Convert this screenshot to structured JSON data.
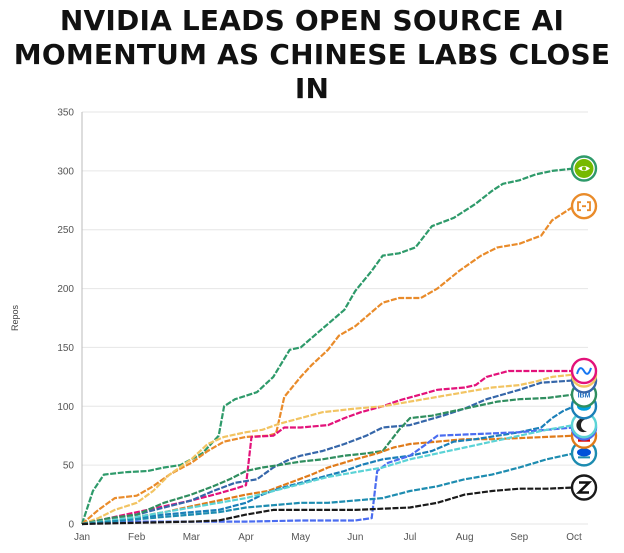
{
  "headline": {
    "line1": "NVIDIA LEADS OPEN SOURCE AI",
    "line2": "MOMENTUM AS CHINESE LABS CLOSE IN"
  },
  "chart_data": {
    "type": "line",
    "title": "NVIDIA LEADS OPEN SOURCE AI MOMENTUM AS CHINESE LABS CLOSE IN",
    "xlabel": "",
    "ylabel": "Repos",
    "ylim": [
      0,
      350
    ],
    "yticks": [
      0,
      50,
      100,
      150,
      200,
      250,
      300,
      350
    ],
    "xlim": [
      0,
      9
    ],
    "xticks": [
      {
        "label": "Jan",
        "x": 0
      },
      {
        "label": "Feb",
        "x": 1
      },
      {
        "label": "Mar",
        "x": 2
      },
      {
        "label": "Apr",
        "x": 3
      },
      {
        "label": "May",
        "x": 4
      },
      {
        "label": "Jun",
        "x": 5
      },
      {
        "label": "Jul",
        "x": 6
      },
      {
        "label": "Aug",
        "x": 7
      },
      {
        "label": "Sep",
        "x": 8
      },
      {
        "label": "Oct",
        "x": 9
      }
    ],
    "grid": true,
    "series": [
      {
        "name": "NVIDIA",
        "color": "#2e9a6a",
        "badge": "nvidia",
        "points": [
          [
            0,
            0
          ],
          [
            0.2,
            28
          ],
          [
            0.4,
            42
          ],
          [
            0.8,
            44
          ],
          [
            1.2,
            45
          ],
          [
            1.5,
            48
          ],
          [
            1.8,
            50
          ],
          [
            2.2,
            60
          ],
          [
            2.5,
            75
          ],
          [
            2.6,
            100
          ],
          [
            2.8,
            106
          ],
          [
            3.2,
            112
          ],
          [
            3.5,
            125
          ],
          [
            3.8,
            148
          ],
          [
            4,
            150
          ],
          [
            4.2,
            158
          ],
          [
            4.5,
            170
          ],
          [
            4.8,
            182
          ],
          [
            5,
            198
          ],
          [
            5.3,
            215
          ],
          [
            5.5,
            228
          ],
          [
            5.8,
            230
          ],
          [
            6.1,
            235
          ],
          [
            6.4,
            253
          ],
          [
            6.8,
            260
          ],
          [
            7.2,
            272
          ],
          [
            7.5,
            283
          ],
          [
            7.7,
            289
          ],
          [
            8,
            292
          ],
          [
            8.3,
            297
          ],
          [
            8.6,
            300
          ],
          [
            9,
            302
          ]
        ]
      },
      {
        "name": "Alibaba",
        "color": "#e98b2a",
        "badge": "alibaba",
        "points": [
          [
            0,
            0
          ],
          [
            0.3,
            12
          ],
          [
            0.6,
            22
          ],
          [
            1,
            24
          ],
          [
            1.3,
            32
          ],
          [
            1.6,
            42
          ],
          [
            2,
            52
          ],
          [
            2.3,
            62
          ],
          [
            2.6,
            70
          ],
          [
            3,
            74
          ],
          [
            3.4,
            75
          ],
          [
            3.55,
            77
          ],
          [
            3.7,
            108
          ],
          [
            4,
            125
          ],
          [
            4.2,
            135
          ],
          [
            4.5,
            148
          ],
          [
            4.7,
            160
          ],
          [
            5,
            168
          ],
          [
            5.3,
            180
          ],
          [
            5.5,
            188
          ],
          [
            5.8,
            192
          ],
          [
            6.2,
            192
          ],
          [
            6.5,
            200
          ],
          [
            6.9,
            215
          ],
          [
            7.3,
            228
          ],
          [
            7.6,
            235
          ],
          [
            8,
            238
          ],
          [
            8.4,
            245
          ],
          [
            8.6,
            258
          ],
          [
            9,
            270
          ]
        ]
      },
      {
        "name": "Meta",
        "color": "#e3127a",
        "badge": "meta",
        "points": [
          [
            0,
            0
          ],
          [
            0.5,
            5
          ],
          [
            1,
            10
          ],
          [
            1.5,
            15
          ],
          [
            2,
            20
          ],
          [
            2.5,
            26
          ],
          [
            2.8,
            30
          ],
          [
            3,
            33
          ],
          [
            3.1,
            74
          ],
          [
            3.5,
            75
          ],
          [
            3.7,
            82
          ],
          [
            4,
            82
          ],
          [
            4.5,
            84
          ],
          [
            4.8,
            90
          ],
          [
            5.1,
            95
          ],
          [
            5.5,
            100
          ],
          [
            5.8,
            105
          ],
          [
            6.2,
            110
          ],
          [
            6.5,
            114
          ],
          [
            7,
            116
          ],
          [
            7.2,
            118
          ],
          [
            7.4,
            125
          ],
          [
            7.8,
            130
          ],
          [
            9,
            130
          ]
        ]
      },
      {
        "name": "Google",
        "color": "#f2c462",
        "badge": "google",
        "points": [
          [
            0,
            0
          ],
          [
            0.3,
            5
          ],
          [
            0.6,
            12
          ],
          [
            1,
            18
          ],
          [
            1.3,
            28
          ],
          [
            1.6,
            42
          ],
          [
            2,
            55
          ],
          [
            2.3,
            68
          ],
          [
            2.6,
            74
          ],
          [
            3,
            78
          ],
          [
            3.3,
            80
          ],
          [
            3.6,
            85
          ],
          [
            4,
            90
          ],
          [
            4.4,
            95
          ],
          [
            5,
            98
          ],
          [
            5.5,
            100
          ],
          [
            6,
            104
          ],
          [
            6.5,
            108
          ],
          [
            7,
            112
          ],
          [
            7.5,
            116
          ],
          [
            8,
            118
          ],
          [
            8.3,
            121
          ],
          [
            8.6,
            125
          ],
          [
            9,
            127
          ]
        ]
      },
      {
        "name": "Microsoft",
        "color": "#3566a9",
        "badge": "microsoft",
        "points": [
          [
            0,
            0
          ],
          [
            0.5,
            4
          ],
          [
            1,
            8
          ],
          [
            1.5,
            14
          ],
          [
            2,
            20
          ],
          [
            2.4,
            28
          ],
          [
            2.8,
            35
          ],
          [
            3.2,
            38
          ],
          [
            3.5,
            48
          ],
          [
            3.8,
            55
          ],
          [
            4,
            58
          ],
          [
            4.4,
            62
          ],
          [
            4.8,
            68
          ],
          [
            5.2,
            75
          ],
          [
            5.5,
            82
          ],
          [
            6,
            84
          ],
          [
            6.3,
            88
          ],
          [
            6.6,
            92
          ],
          [
            7,
            98
          ],
          [
            7.4,
            106
          ],
          [
            7.7,
            110
          ],
          [
            8,
            114
          ],
          [
            8.4,
            120
          ],
          [
            9,
            122
          ]
        ]
      },
      {
        "name": "IBM",
        "color": "#2f8e5f",
        "badge": "ibm",
        "points": [
          [
            0,
            0
          ],
          [
            0.5,
            5
          ],
          [
            1,
            8
          ],
          [
            1.5,
            18
          ],
          [
            2,
            25
          ],
          [
            2.4,
            32
          ],
          [
            2.7,
            38
          ],
          [
            3,
            45
          ],
          [
            3.3,
            48
          ],
          [
            3.6,
            50
          ],
          [
            4,
            53
          ],
          [
            4.4,
            55
          ],
          [
            4.8,
            58
          ],
          [
            5.2,
            60
          ],
          [
            5.5,
            62
          ],
          [
            5.8,
            80
          ],
          [
            6,
            90
          ],
          [
            6.4,
            92
          ],
          [
            6.8,
            96
          ],
          [
            7.2,
            100
          ],
          [
            7.6,
            104
          ],
          [
            8,
            106
          ],
          [
            8.5,
            107
          ],
          [
            9,
            110
          ]
        ]
      },
      {
        "name": "Mistral",
        "color": "#e07b1a",
        "badge": "mistral",
        "points": [
          [
            0,
            0
          ],
          [
            0.5,
            3
          ],
          [
            1,
            6
          ],
          [
            1.5,
            10
          ],
          [
            2,
            15
          ],
          [
            2.5,
            20
          ],
          [
            3,
            25
          ],
          [
            3.4,
            28
          ],
          [
            3.8,
            35
          ],
          [
            4.2,
            42
          ],
          [
            4.5,
            48
          ],
          [
            5,
            55
          ],
          [
            5.4,
            60
          ],
          [
            5.7,
            65
          ],
          [
            6,
            68
          ],
          [
            6.5,
            70
          ],
          [
            7,
            72
          ],
          [
            7.5,
            72
          ],
          [
            8,
            73
          ],
          [
            8.5,
            74
          ],
          [
            9,
            75
          ]
        ]
      },
      {
        "name": "Salesforce",
        "color": "#1a7fb8",
        "badge": "salesforce",
        "points": [
          [
            0,
            0
          ],
          [
            0.5,
            2
          ],
          [
            1,
            5
          ],
          [
            1.5,
            8
          ],
          [
            2,
            10
          ],
          [
            2.5,
            12
          ],
          [
            3,
            18
          ],
          [
            3.3,
            25
          ],
          [
            3.6,
            30
          ],
          [
            4,
            35
          ],
          [
            4.4,
            40
          ],
          [
            4.8,
            45
          ],
          [
            5.1,
            50
          ],
          [
            5.5,
            55
          ],
          [
            6,
            58
          ],
          [
            6.4,
            62
          ],
          [
            6.8,
            70
          ],
          [
            7.2,
            72
          ],
          [
            7.6,
            75
          ],
          [
            8,
            78
          ],
          [
            8.4,
            82
          ],
          [
            8.6,
            90
          ],
          [
            8.8,
            96
          ],
          [
            9,
            100
          ]
        ]
      },
      {
        "name": "DeepSeek",
        "color": "#4a6cf0",
        "badge": "deepseek",
        "points": [
          [
            0,
            0
          ],
          [
            1,
            2
          ],
          [
            2,
            2
          ],
          [
            3,
            2
          ],
          [
            4,
            3
          ],
          [
            4.5,
            3
          ],
          [
            5,
            3
          ],
          [
            5.3,
            5
          ],
          [
            5.4,
            45
          ],
          [
            5.6,
            52
          ],
          [
            6,
            58
          ],
          [
            6.3,
            68
          ],
          [
            6.5,
            75
          ],
          [
            7,
            76
          ],
          [
            7.5,
            77
          ],
          [
            8,
            78
          ],
          [
            8.5,
            80
          ],
          [
            9,
            82
          ]
        ]
      },
      {
        "name": "Moonshot",
        "color": "#5bd3d6",
        "badge": "moonshot",
        "points": [
          [
            0,
            0
          ],
          [
            0.5,
            3
          ],
          [
            1,
            6
          ],
          [
            1.5,
            10
          ],
          [
            2,
            14
          ],
          [
            2.5,
            18
          ],
          [
            3,
            22
          ],
          [
            3.5,
            28
          ],
          [
            4,
            34
          ],
          [
            4.5,
            40
          ],
          [
            5,
            44
          ],
          [
            5.5,
            48
          ],
          [
            6,
            55
          ],
          [
            6.5,
            60
          ],
          [
            7,
            65
          ],
          [
            7.5,
            70
          ],
          [
            8,
            75
          ],
          [
            8.5,
            80
          ],
          [
            9,
            84
          ]
        ]
      },
      {
        "name": "Tencent",
        "color": "#1d8cb0",
        "badge": "tencent",
        "points": [
          [
            0,
            0
          ],
          [
            0.5,
            2
          ],
          [
            1,
            4
          ],
          [
            1.5,
            6
          ],
          [
            2,
            8
          ],
          [
            2.5,
            10
          ],
          [
            3,
            14
          ],
          [
            3.5,
            16
          ],
          [
            4,
            18
          ],
          [
            4.5,
            18
          ],
          [
            5,
            20
          ],
          [
            5.5,
            22
          ],
          [
            6,
            28
          ],
          [
            6.5,
            32
          ],
          [
            7,
            38
          ],
          [
            7.5,
            42
          ],
          [
            8,
            48
          ],
          [
            8.5,
            55
          ],
          [
            9,
            60
          ]
        ]
      },
      {
        "name": "Zhipu",
        "color": "#1a1a1a",
        "badge": "zhipu",
        "points": [
          [
            0,
            0
          ],
          [
            1,
            1
          ],
          [
            2,
            2
          ],
          [
            2.5,
            3
          ],
          [
            3,
            8
          ],
          [
            3.5,
            12
          ],
          [
            4,
            12
          ],
          [
            4.5,
            12
          ],
          [
            5,
            12
          ],
          [
            5.5,
            13
          ],
          [
            6,
            14
          ],
          [
            6.5,
            18
          ],
          [
            7,
            25
          ],
          [
            7.5,
            28
          ],
          [
            8,
            30
          ],
          [
            8.5,
            30
          ],
          [
            9,
            31
          ]
        ]
      }
    ]
  }
}
